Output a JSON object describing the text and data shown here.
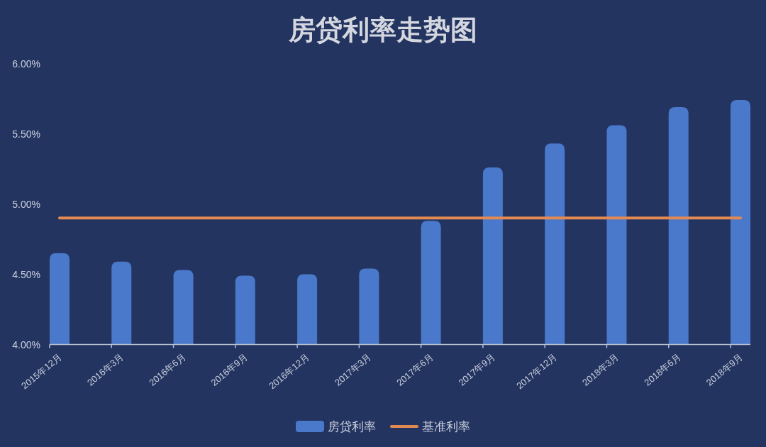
{
  "chart_data": {
    "type": "bar",
    "title": "房贷利率走势图",
    "categories": [
      "2015年12月",
      "2016年3月",
      "2016年6月",
      "2016年9月",
      "2016年12月",
      "2017年3月",
      "2017年6月",
      "2017年9月",
      "2017年12月",
      "2018年3月",
      "2018年6月",
      "2018年9月"
    ],
    "series": [
      {
        "name": "房贷利率",
        "color": "#4a78cb",
        "values": [
          4.65,
          4.59,
          4.53,
          4.49,
          4.5,
          4.54,
          4.88,
          5.26,
          5.43,
          5.56,
          5.69,
          5.74
        ]
      },
      {
        "name": "基准利率",
        "type": "line",
        "color": "#e38a52",
        "values": [
          4.9,
          4.9,
          4.9,
          4.9,
          4.9,
          4.9,
          4.9,
          4.9,
          4.9,
          4.9,
          4.9,
          4.9
        ]
      }
    ],
    "ylim": [
      4,
      6
    ],
    "yticks": [
      {
        "value": 4,
        "label": "4.00%"
      },
      {
        "value": 4.5,
        "label": "4.50%"
      },
      {
        "value": 5,
        "label": "5.00%"
      },
      {
        "value": 5.5,
        "label": "5.50%"
      },
      {
        "value": 6,
        "label": "6.00%"
      }
    ],
    "legend": "bottom"
  }
}
